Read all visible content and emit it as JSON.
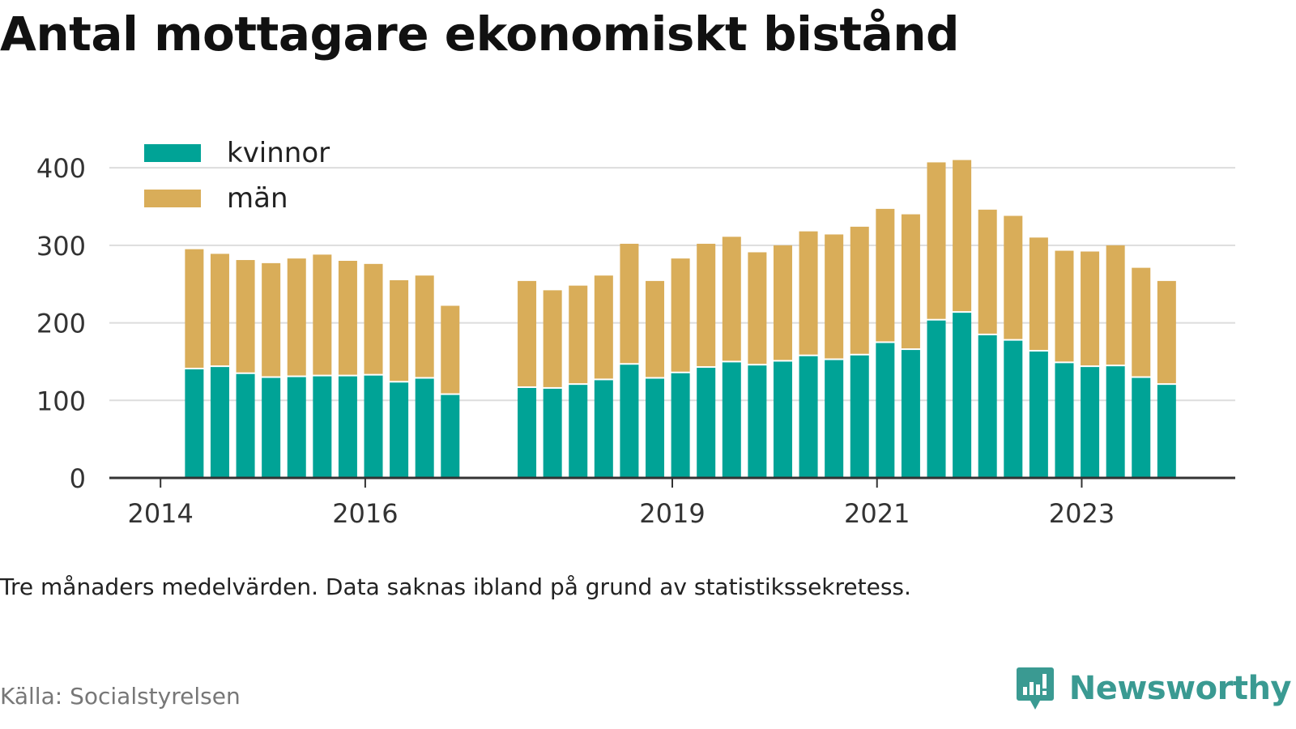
{
  "title": "Antal mottagare ekonomiskt bistånd",
  "note": "Tre månaders medelvärden. Data saknas ibland på grund av statistikssekretess.",
  "source": "Källa: Socialstyrelsen",
  "brand": "Newsworthy",
  "colors": {
    "kvinnor": "#00a396",
    "man": "#d9ad59",
    "grid": "#dddddd",
    "axis": "#333333"
  },
  "chart_data": {
    "type": "bar",
    "stacked": true,
    "ylim": [
      0,
      420
    ],
    "y_ticks": [
      0,
      100,
      200,
      300,
      400
    ],
    "x_ticks": [
      {
        "label": "2014",
        "t": 2014.0
      },
      {
        "label": "2016",
        "t": 2016.0
      },
      {
        "label": "2019",
        "t": 2019.0
      },
      {
        "label": "2021",
        "t": 2021.0
      },
      {
        "label": "2023",
        "t": 2023.0
      }
    ],
    "x_range": [
      2013.5,
      2024.5
    ],
    "legend": {
      "placement": "top-left"
    },
    "grid": true,
    "periods": [
      2014.33,
      2014.58,
      2014.83,
      2015.08,
      2015.33,
      2015.58,
      2015.83,
      2016.08,
      2016.33,
      2016.58,
      2016.83,
      2017.58,
      2017.83,
      2018.08,
      2018.33,
      2018.58,
      2018.83,
      2019.08,
      2019.33,
      2019.58,
      2019.83,
      2020.08,
      2020.33,
      2020.58,
      2020.83,
      2021.08,
      2021.33,
      2021.58,
      2021.83,
      2022.08,
      2022.33,
      2022.58,
      2022.83,
      2023.08,
      2023.33,
      2023.58,
      2023.83
    ],
    "series": [
      {
        "name": "kvinnor",
        "values": [
          140,
          143,
          134,
          129,
          130,
          131,
          131,
          132,
          123,
          128,
          107,
          116,
          115,
          120,
          126,
          146,
          128,
          135,
          142,
          149,
          145,
          150,
          157,
          152,
          158,
          174,
          165,
          203,
          213,
          184,
          177,
          163,
          148,
          143,
          144,
          129,
          120
        ]
      },
      {
        "name": "män",
        "values": [
          155,
          146,
          147,
          148,
          153,
          157,
          149,
          144,
          132,
          133,
          115,
          138,
          127,
          128,
          135,
          156,
          126,
          148,
          160,
          162,
          146,
          150,
          161,
          162,
          166,
          173,
          175,
          204,
          197,
          162,
          161,
          147,
          145,
          149,
          156,
          142,
          134
        ]
      }
    ]
  }
}
